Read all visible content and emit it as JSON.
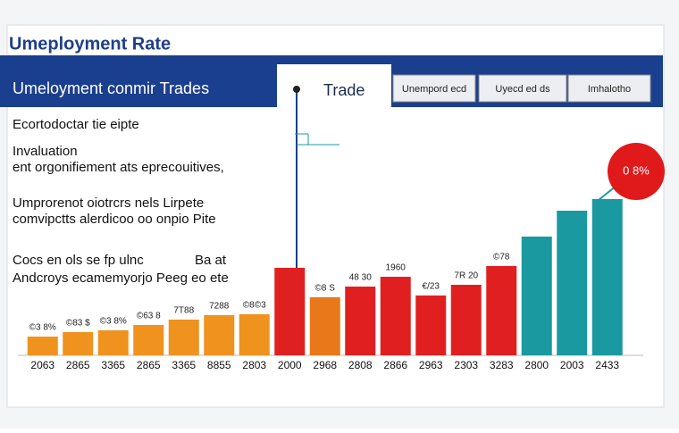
{
  "page_title": "Umeployment Rate",
  "header": {
    "title": "Umeloyment conmir Trades",
    "subtitle": "Trade",
    "tabs": [
      "Unempord ecd",
      "Uyecd ed ds",
      "Imhalotho"
    ]
  },
  "notes": [
    "Ecortodoctar tie eipte",
    "Invaluation",
    "ent orgonifiement ats eprecouitives,",
    "Umprorenot oiotrcrs nels Lirpete",
    "comvipctts alerdicoo oo onpio Pite",
    "Cocs en ols se fp ulnc",
    "Ba at",
    "Andcroys ecamemyorjo Peeg eo ete"
  ],
  "chart_data": {
    "type": "bar",
    "categories": [
      "2063",
      "2865",
      "3365",
      "2865",
      "3365",
      "8855",
      "2803",
      "2000",
      "2968",
      "2808",
      "2866",
      "2963",
      "2303",
      "3283",
      "2800",
      "2003",
      "2433"
    ],
    "values": [
      8.4,
      10.4,
      11.2,
      13.6,
      16,
      18,
      18.4,
      39.2,
      26,
      30.8,
      35.2,
      26.8,
      31.6,
      40,
      53.2,
      64.8,
      70
    ],
    "bar_notes": [
      "©3 8%",
      "©83 $",
      "©3 8%",
      "©63 8",
      "7T88",
      "7288",
      "©8©3",
      null,
      "©8 S",
      "48 30",
      "1960",
      "€/23",
      "7R 20",
      "©78",
      null,
      null,
      null
    ],
    "colors": [
      "#f0921e",
      "#f0921e",
      "#f0921e",
      "#f0921e",
      "#f0921e",
      "#f0921e",
      "#f0921e",
      "#e02020",
      "#e8781a",
      "#e02020",
      "#e02020",
      "#e02020",
      "#e02020",
      "#e02020",
      "#1a9aa0",
      "#1a9aa0",
      "#1a9aa0"
    ],
    "callout": "0 8%",
    "ylim": [
      0,
      100
    ]
  }
}
